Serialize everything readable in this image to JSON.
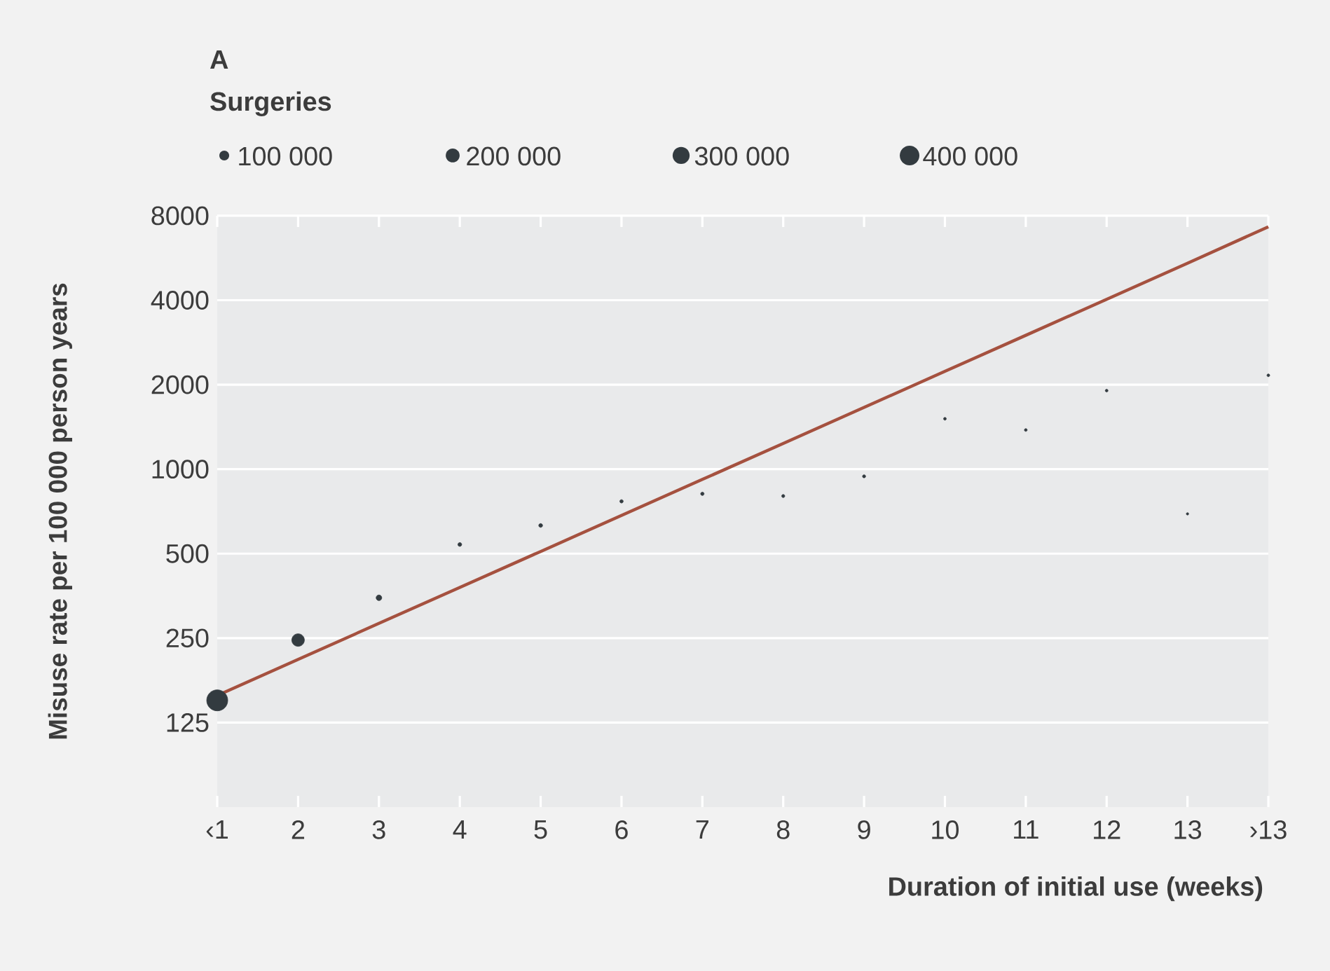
{
  "chart_data": {
    "type": "bubble",
    "title": "A",
    "legend_title": "Surgeries",
    "xlabel": "Duration of initial use (weeks)",
    "ylabel": "Misuse rate per 100 000 person years",
    "categories": [
      "‹1",
      "2",
      "3",
      "4",
      "5",
      "6",
      "7",
      "8",
      "9",
      "10",
      "11",
      "12",
      "13",
      "›13"
    ],
    "series": [
      {
        "type": "line",
        "color": "#a5513f",
        "marker": "none",
        "values": [
          156,
          210,
          282,
          379,
          509,
          684,
          919,
          1235,
          1660,
          2231,
          2999,
          4030,
          5417,
          7310
        ]
      },
      {
        "color": "#333b40",
        "marker": "circle",
        "values": [
          150,
          246,
          348,
          539,
          630,
          768,
          817,
          802,
          943,
          1512,
          1379,
          1905,
          693,
          2160
        ],
        "sizes": [
          460000,
          165000,
          33000,
          15000,
          15000,
          12000,
          12000,
          10000,
          10000,
          8000,
          8000,
          8000,
          6000,
          8000
        ]
      }
    ],
    "size_legend": [
      {
        "value": 100000,
        "label": "100 000"
      },
      {
        "value": 200000,
        "label": "200 000"
      },
      {
        "value": 300000,
        "label": "300 000"
      },
      {
        "value": 400000,
        "label": "400 000"
      }
    ],
    "ylim": [
      62.5,
      8000
    ],
    "yticks": [
      125,
      250,
      500,
      1000,
      2000,
      4000,
      8000
    ],
    "log": "y",
    "grid": "y"
  }
}
